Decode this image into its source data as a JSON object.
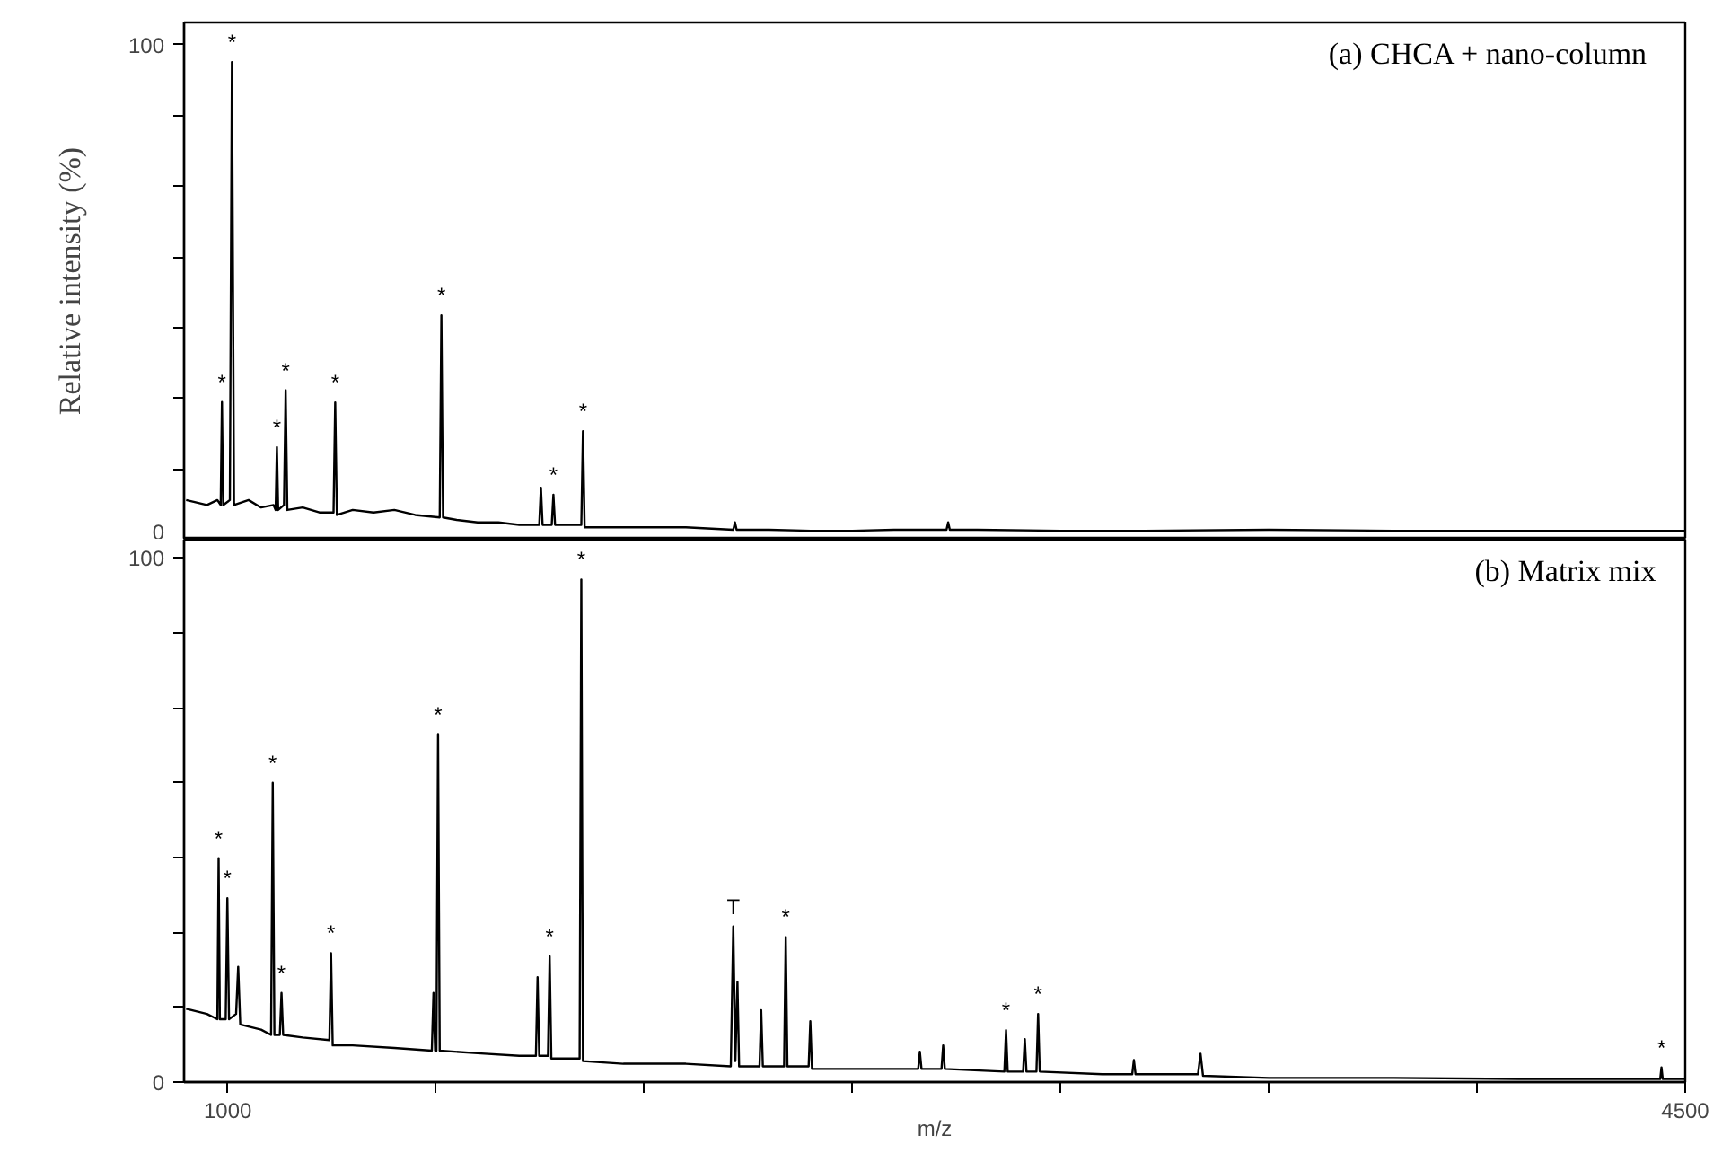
{
  "chart_data": [
    {
      "type": "line",
      "title": "(a)  CHCA  + nano-column",
      "ylabel": "Relative intensity (%)",
      "xlim": [
        895,
        4500
      ],
      "ylim": [
        0,
        104.5
      ],
      "tick_labels": "y",
      "yticks": [
        0,
        {
          "value": 14.3,
          "label": null
        },
        {
          "value": 28.6,
          "label": null
        },
        {
          "value": 42.9,
          "label": null
        },
        {
          "value": 57.1,
          "label": null
        },
        {
          "value": 71.4,
          "label": null
        },
        {
          "value": 85.7,
          "label": null
        },
        100
      ],
      "series": [
        {
          "color": "#000000",
          "x": [
            900,
            950,
            975,
            983,
            986,
            989,
            1005,
            1010,
            1015,
            1050,
            1080,
            1110,
            1115,
            1118,
            1121,
            1135,
            1139,
            1143,
            1180,
            1220,
            1254,
            1258,
            1262,
            1300,
            1350,
            1400,
            1450,
            1509,
            1513,
            1517,
            1550,
            1600,
            1650,
            1700,
            1748,
            1752,
            1756,
            1778,
            1782,
            1786,
            1830,
            1849,
            1853,
            1857,
            1900,
            2000,
            2100,
            2214,
            2218,
            2222,
            2300,
            2400,
            2500,
            2600,
            2726,
            2730,
            2734,
            2800,
            3000,
            3200,
            3500,
            3800,
            4000,
            4200,
            4500
          ],
          "values": [
            8,
            7,
            8,
            7,
            27.8,
            7,
            8,
            96.5,
            7,
            8,
            6.5,
            7,
            6,
            18.7,
            6,
            7,
            30.2,
            6,
            6.5,
            5.5,
            5.5,
            27.7,
            5,
            6,
            5.5,
            6,
            5,
            4.5,
            45.3,
            4.5,
            4,
            3.5,
            3.5,
            3,
            3,
            10.5,
            3,
            3,
            9.1,
            3,
            3,
            3,
            21.9,
            2.5,
            2.5,
            2.5,
            2.5,
            2,
            3.5,
            2,
            2,
            1.8,
            1.8,
            2,
            2,
            3.5,
            2,
            2,
            1.8,
            1.8,
            2,
            1.8,
            1.8,
            1.8,
            1.8
          ]
        }
      ],
      "annotations": [
        {
          "text": "*",
          "x": 986,
          "y": 27.8
        },
        {
          "text": "*",
          "x": 1010,
          "y": 96.5
        },
        {
          "text": "*",
          "x": 1118,
          "y": 18.7
        },
        {
          "text": "*",
          "x": 1139,
          "y": 30.2
        },
        {
          "text": "*",
          "x": 1258,
          "y": 27.7
        },
        {
          "text": "*",
          "x": 1513,
          "y": 45.3
        },
        {
          "text": "*",
          "x": 1782,
          "y": 9.1
        },
        {
          "text": "*",
          "x": 1853,
          "y": 21.9
        }
      ]
    },
    {
      "type": "line",
      "title": "(b)  Matrix mix",
      "xlabel": "m/z",
      "xlim": [
        895,
        4500
      ],
      "ylim": [
        0,
        103.5
      ],
      "xticks": [
        1000,
        {
          "value": 1500,
          "label": null
        },
        {
          "value": 2000,
          "label": null
        },
        {
          "value": 2500,
          "label": null
        },
        {
          "value": 3000,
          "label": null
        },
        {
          "value": 3500,
          "label": null
        },
        {
          "value": 4000,
          "label": null
        },
        4500
      ],
      "yticks": [
        0,
        {
          "value": 14.3,
          "label": null
        },
        {
          "value": 28.6,
          "label": null
        },
        {
          "value": 42.9,
          "label": null
        },
        {
          "value": 57.1,
          "label": null
        },
        {
          "value": 71.4,
          "label": null
        },
        {
          "value": 85.7,
          "label": null
        },
        100
      ],
      "series": [
        {
          "color": "#000000",
          "x": [
            900,
            950,
            975,
            978,
            981,
            995,
            999,
            1003,
            1020,
            1025,
            1030,
            1080,
            1104,
            1108,
            1112,
            1125,
            1129,
            1133,
            1180,
            1244,
            1248,
            1252,
            1300,
            1400,
            1490,
            1494,
            1498,
            1501,
            1505,
            1509,
            1600,
            1700,
            1740,
            1744,
            1748,
            1769,
            1773,
            1777,
            1845,
            1849,
            1853,
            1950,
            2100,
            2208,
            2214,
            2219,
            2224,
            2228,
            2277,
            2281,
            2285,
            2336,
            2340,
            2344,
            2395,
            2399,
            2403,
            2500,
            2658,
            2662,
            2666,
            2714,
            2718,
            2722,
            2865,
            2869,
            2873,
            2910,
            2914,
            2918,
            2942,
            2946,
            2950,
            3100,
            3172,
            3176,
            3180,
            3330,
            3336,
            3342,
            3500,
            3800,
            4100,
            4400,
            4440,
            4443,
            4446,
            4500
          ],
          "values": [
            14,
            13,
            12,
            42.7,
            12,
            12,
            35.1,
            12,
            13,
            22,
            11,
            10,
            9,
            57.1,
            9,
            9,
            17,
            9,
            8.5,
            8,
            24.6,
            7,
            7,
            6.5,
            6,
            17,
            6,
            6,
            66.4,
            6,
            5.5,
            5,
            5,
            20,
            5,
            5,
            24,
            4.5,
            4.5,
            95.9,
            4,
            3.5,
            3.5,
            3,
            29.7,
            4,
            19.1,
            3,
            3,
            13.7,
            3,
            3,
            27.7,
            3,
            3,
            11.6,
            2.5,
            2.5,
            2.5,
            5.8,
            2.5,
            2.5,
            7,
            2.5,
            2,
            9.9,
            2,
            2,
            8.2,
            2,
            2,
            13,
            2,
            1.5,
            1.5,
            4.2,
            1.5,
            1.5,
            5.4,
            1.2,
            0.8,
            0.8,
            0.6,
            0.6,
            0.6,
            2.8,
            0.6,
            0.6
          ]
        }
      ],
      "annotations": [
        {
          "text": "*",
          "x": 978,
          "y": 42.7
        },
        {
          "text": "*",
          "x": 999,
          "y": 35.1
        },
        {
          "text": "*",
          "x": 1108,
          "y": 57.1
        },
        {
          "text": "*",
          "x": 1129,
          "y": 17
        },
        {
          "text": "*",
          "x": 1248,
          "y": 24.6
        },
        {
          "text": "*",
          "x": 1505,
          "y": 66.4
        },
        {
          "text": "*",
          "x": 1773,
          "y": 24
        },
        {
          "text": "*",
          "x": 1849,
          "y": 95.9
        },
        {
          "text": "T",
          "x": 2214,
          "y": 29.7
        },
        {
          "text": "*",
          "x": 2340,
          "y": 27.7
        },
        {
          "text": "*",
          "x": 2869,
          "y": 9.9
        },
        {
          "text": "*",
          "x": 2946,
          "y": 13
        },
        {
          "text": "*",
          "x": 4443,
          "y": 2.8
        }
      ]
    }
  ]
}
